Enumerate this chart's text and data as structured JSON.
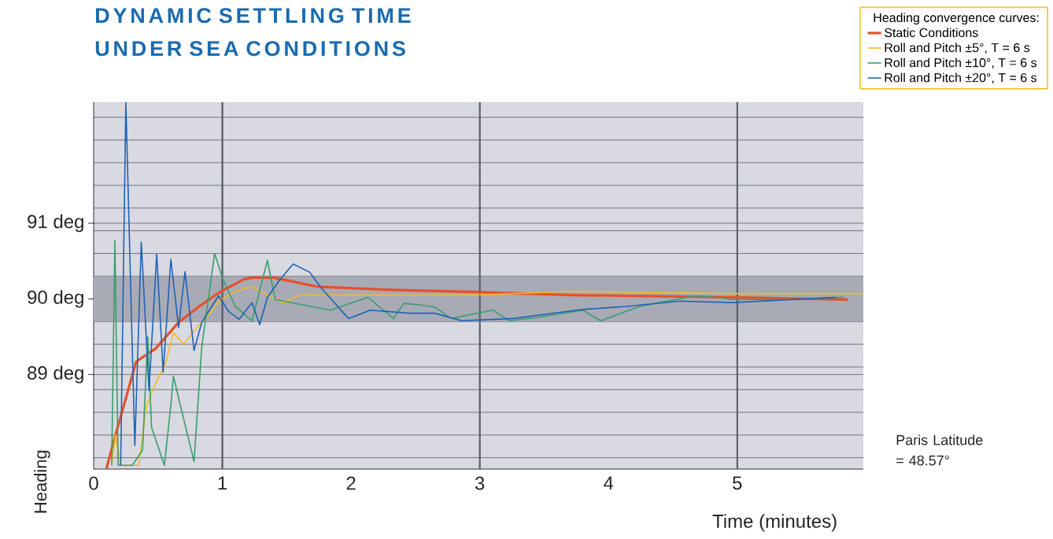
{
  "chart_data": {
    "type": "line",
    "title": "DYNAMIC SETTLING TIME UNDER SEA CONDITIONS",
    "xlabel": "Time (minutes)",
    "ylabel": "Heading",
    "legend_title": "Heading convergence curves:",
    "annotations": [
      "Paris Latitude = 48.57°"
    ],
    "series": [
      {
        "name": "Static Conditions",
        "color": "#e8502a",
        "x": [
          0.1,
          0.17,
          0.33,
          0.48,
          0.66,
          0.82,
          0.98,
          1.17,
          1.23,
          1.4,
          1.74,
          2.3,
          2.96,
          3.73,
          4.96,
          5.86
        ],
        "values": [
          87.76,
          88.2,
          89.17,
          89.34,
          89.69,
          89.9,
          90.09,
          90.26,
          90.28,
          90.28,
          90.16,
          90.12,
          90.09,
          90.05,
          90.02,
          89.99
        ]
      },
      {
        "name": "Roll and Pitch ±5°, T = 6 s",
        "color": "#f5bc1c",
        "x": [
          0.14,
          0.17,
          0.21,
          0.35,
          0.41,
          0.5,
          0.55,
          0.62,
          0.7,
          0.8,
          0.9,
          0.97,
          1.1,
          1.23,
          1.47,
          1.6,
          1.84,
          2.3,
          2.96,
          3.73,
          4.96,
          5.98
        ],
        "values": [
          87.8,
          88.2,
          87.8,
          87.8,
          88.58,
          88.96,
          89.1,
          89.55,
          89.4,
          89.62,
          89.8,
          89.97,
          90.1,
          90.16,
          89.95,
          90.05,
          90.05,
          90.05,
          90.05,
          90.1,
          90.07,
          90.07
        ]
      },
      {
        "name": "Roll and Pitch ±10°, T = 6 s",
        "color": "#3a9e6e",
        "x": [
          0.14,
          0.165,
          0.19,
          0.3,
          0.38,
          0.42,
          0.45,
          0.55,
          0.6,
          0.62,
          0.66,
          0.78,
          0.84,
          0.94,
          1.0,
          1.1,
          1.23,
          1.35,
          1.41,
          1.84,
          2.13,
          2.33,
          2.41,
          2.53,
          2.65,
          2.78,
          3.1,
          3.23,
          3.47,
          3.8,
          3.94,
          4.24,
          4.67,
          4.85,
          4.96,
          5.37,
          5.83
        ],
        "values": [
          87.8,
          90.77,
          87.8,
          87.8,
          88.0,
          89.5,
          88.3,
          87.8,
          88.6,
          88.98,
          88.69,
          87.85,
          89.37,
          90.6,
          90.28,
          89.9,
          89.71,
          90.51,
          89.99,
          89.85,
          90.02,
          89.74,
          89.94,
          89.92,
          89.89,
          89.74,
          89.85,
          89.71,
          89.76,
          89.85,
          89.71,
          89.9,
          90.04,
          90.02,
          89.99,
          89.99,
          90.02
        ]
      },
      {
        "name": "Roll and Pitch ±20°, T = 6 s",
        "color": "#1f63b4",
        "x": [
          0.21,
          0.25,
          0.32,
          0.37,
          0.43,
          0.49,
          0.54,
          0.6,
          0.66,
          0.71,
          0.78,
          0.84,
          0.97,
          1.05,
          1.13,
          1.23,
          1.29,
          1.35,
          1.45,
          1.55,
          1.68,
          1.76,
          1.98,
          2.15,
          2.45,
          2.65,
          2.86,
          3.26,
          3.8,
          4.14,
          4.55,
          4.96,
          5.77
        ],
        "values": [
          87.8,
          92.6,
          88.06,
          90.75,
          88.79,
          90.59,
          89.03,
          90.52,
          89.62,
          90.36,
          89.32,
          89.69,
          90.04,
          89.83,
          89.73,
          89.95,
          89.66,
          90.02,
          90.26,
          90.46,
          90.35,
          90.16,
          89.74,
          89.85,
          89.81,
          89.81,
          89.71,
          89.74,
          89.86,
          89.9,
          89.97,
          89.95,
          90.02
        ]
      }
    ],
    "xlim": [
      0,
      5.98
    ],
    "ylim": [
      87.75,
      92.6
    ],
    "xticks": [
      0,
      1,
      2,
      3,
      4,
      5
    ],
    "yticks": [
      {
        "value": 87.9,
        "label": null
      },
      {
        "value": 88.2,
        "label": null
      },
      {
        "value": 88.5,
        "label": null
      },
      {
        "value": 88.8,
        "label": null
      },
      {
        "value": 89,
        "label": "89 deg"
      },
      {
        "value": 89.1,
        "label": null
      },
      {
        "value": 89.4,
        "label": null
      },
      {
        "value": 89.7,
        "label": null
      },
      {
        "value": 90,
        "label": "90 deg"
      },
      {
        "value": 90.3,
        "label": null
      },
      {
        "value": 90.6,
        "label": null
      },
      {
        "value": 90.9,
        "label": null
      },
      {
        "value": 91,
        "label": "91 deg"
      },
      {
        "value": 91.2,
        "label": null
      },
      {
        "value": 91.5,
        "label": null
      },
      {
        "value": 91.8,
        "label": null
      },
      {
        "value": 92.1,
        "label": null
      },
      {
        "value": 92.4,
        "label": null
      }
    ],
    "grid": "y",
    "legend": "top right",
    "ref_lines": [
      {
        "axis": "x",
        "value": 1,
        "color": "#555a63"
      },
      {
        "axis": "x",
        "value": 3,
        "color": "#555a63"
      },
      {
        "axis": "x",
        "value": 5,
        "color": "#555a63"
      }
    ],
    "bands": [
      {
        "axis": "y",
        "from": 89.7,
        "to": 90.3,
        "color": "#a8aab6"
      }
    ]
  }
}
